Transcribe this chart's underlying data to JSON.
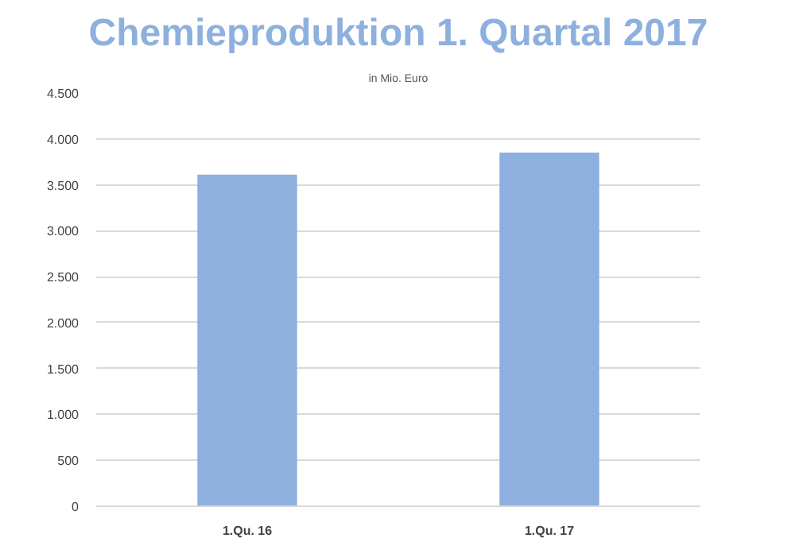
{
  "chart_data": {
    "type": "bar",
    "title": "Chemieproduktion 1. Quartal 2017",
    "subtitle": "in Mio. Euro",
    "categories": [
      "1.Qu. 16",
      "1.Qu. 17"
    ],
    "values": [
      3610,
      3850
    ],
    "color": "#8db0de",
    "ylim": [
      0,
      4500
    ],
    "yticks": [
      0,
      {
        "value": 500,
        "label": "500"
      },
      {
        "value": 1000,
        "label": "1.000"
      },
      {
        "value": 1500,
        "label": "1.500"
      },
      {
        "value": 2000,
        "label": "2.000"
      },
      {
        "value": 2500,
        "label": "2.500"
      },
      {
        "value": 3000,
        "label": "3.000"
      },
      {
        "value": 3500,
        "label": "3.500"
      },
      {
        "value": 4000,
        "label": "4.000"
      },
      {
        "value": 4500,
        "label": "4.500"
      }
    ],
    "grid": "y"
  }
}
